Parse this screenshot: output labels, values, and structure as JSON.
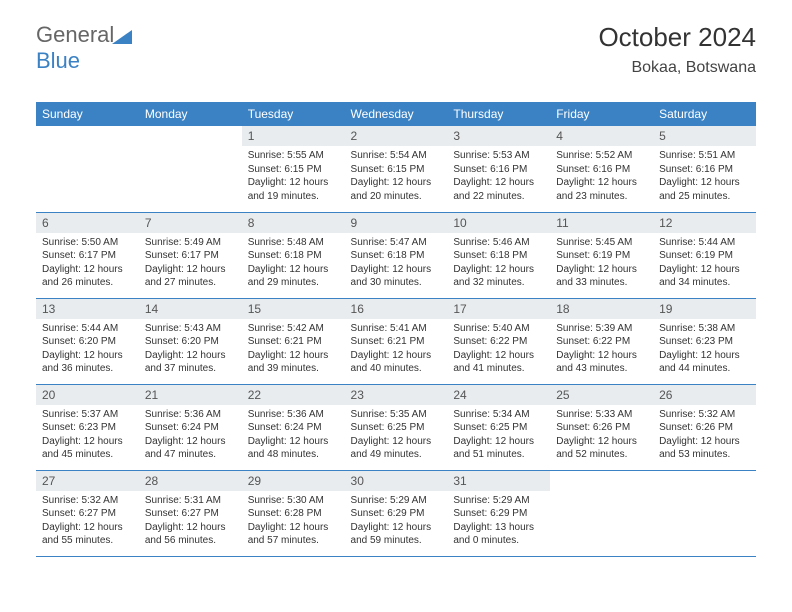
{
  "brand": {
    "text1": "General",
    "text2": "Blue",
    "color1": "#666666",
    "accent": "#3b82c4"
  },
  "header": {
    "title": "October 2024",
    "location": "Bokaa, Botswana"
  },
  "styling": {
    "header_bg": "#3b82c4",
    "header_fg": "#ffffff",
    "daynum_bg": "#e8ecef",
    "row_border": "#3b82c4",
    "body_font_size": 10,
    "th_font_size": 12,
    "title_font_size": 26,
    "location_font_size": 16
  },
  "days_of_week": [
    "Sunday",
    "Monday",
    "Tuesday",
    "Wednesday",
    "Thursday",
    "Friday",
    "Saturday"
  ],
  "cells": [
    {
      "n": "",
      "sr": "",
      "ss": "",
      "dl": ""
    },
    {
      "n": "",
      "sr": "",
      "ss": "",
      "dl": ""
    },
    {
      "n": "1",
      "sr": "5:55 AM",
      "ss": "6:15 PM",
      "dl": "12 hours and 19 minutes."
    },
    {
      "n": "2",
      "sr": "5:54 AM",
      "ss": "6:15 PM",
      "dl": "12 hours and 20 minutes."
    },
    {
      "n": "3",
      "sr": "5:53 AM",
      "ss": "6:16 PM",
      "dl": "12 hours and 22 minutes."
    },
    {
      "n": "4",
      "sr": "5:52 AM",
      "ss": "6:16 PM",
      "dl": "12 hours and 23 minutes."
    },
    {
      "n": "5",
      "sr": "5:51 AM",
      "ss": "6:16 PM",
      "dl": "12 hours and 25 minutes."
    },
    {
      "n": "6",
      "sr": "5:50 AM",
      "ss": "6:17 PM",
      "dl": "12 hours and 26 minutes."
    },
    {
      "n": "7",
      "sr": "5:49 AM",
      "ss": "6:17 PM",
      "dl": "12 hours and 27 minutes."
    },
    {
      "n": "8",
      "sr": "5:48 AM",
      "ss": "6:18 PM",
      "dl": "12 hours and 29 minutes."
    },
    {
      "n": "9",
      "sr": "5:47 AM",
      "ss": "6:18 PM",
      "dl": "12 hours and 30 minutes."
    },
    {
      "n": "10",
      "sr": "5:46 AM",
      "ss": "6:18 PM",
      "dl": "12 hours and 32 minutes."
    },
    {
      "n": "11",
      "sr": "5:45 AM",
      "ss": "6:19 PM",
      "dl": "12 hours and 33 minutes."
    },
    {
      "n": "12",
      "sr": "5:44 AM",
      "ss": "6:19 PM",
      "dl": "12 hours and 34 minutes."
    },
    {
      "n": "13",
      "sr": "5:44 AM",
      "ss": "6:20 PM",
      "dl": "12 hours and 36 minutes."
    },
    {
      "n": "14",
      "sr": "5:43 AM",
      "ss": "6:20 PM",
      "dl": "12 hours and 37 minutes."
    },
    {
      "n": "15",
      "sr": "5:42 AM",
      "ss": "6:21 PM",
      "dl": "12 hours and 39 minutes."
    },
    {
      "n": "16",
      "sr": "5:41 AM",
      "ss": "6:21 PM",
      "dl": "12 hours and 40 minutes."
    },
    {
      "n": "17",
      "sr": "5:40 AM",
      "ss": "6:22 PM",
      "dl": "12 hours and 41 minutes."
    },
    {
      "n": "18",
      "sr": "5:39 AM",
      "ss": "6:22 PM",
      "dl": "12 hours and 43 minutes."
    },
    {
      "n": "19",
      "sr": "5:38 AM",
      "ss": "6:23 PM",
      "dl": "12 hours and 44 minutes."
    },
    {
      "n": "20",
      "sr": "5:37 AM",
      "ss": "6:23 PM",
      "dl": "12 hours and 45 minutes."
    },
    {
      "n": "21",
      "sr": "5:36 AM",
      "ss": "6:24 PM",
      "dl": "12 hours and 47 minutes."
    },
    {
      "n": "22",
      "sr": "5:36 AM",
      "ss": "6:24 PM",
      "dl": "12 hours and 48 minutes."
    },
    {
      "n": "23",
      "sr": "5:35 AM",
      "ss": "6:25 PM",
      "dl": "12 hours and 49 minutes."
    },
    {
      "n": "24",
      "sr": "5:34 AM",
      "ss": "6:25 PM",
      "dl": "12 hours and 51 minutes."
    },
    {
      "n": "25",
      "sr": "5:33 AM",
      "ss": "6:26 PM",
      "dl": "12 hours and 52 minutes."
    },
    {
      "n": "26",
      "sr": "5:32 AM",
      "ss": "6:26 PM",
      "dl": "12 hours and 53 minutes."
    },
    {
      "n": "27",
      "sr": "5:32 AM",
      "ss": "6:27 PM",
      "dl": "12 hours and 55 minutes."
    },
    {
      "n": "28",
      "sr": "5:31 AM",
      "ss": "6:27 PM",
      "dl": "12 hours and 56 minutes."
    },
    {
      "n": "29",
      "sr": "5:30 AM",
      "ss": "6:28 PM",
      "dl": "12 hours and 57 minutes."
    },
    {
      "n": "30",
      "sr": "5:29 AM",
      "ss": "6:29 PM",
      "dl": "12 hours and 59 minutes."
    },
    {
      "n": "31",
      "sr": "5:29 AM",
      "ss": "6:29 PM",
      "dl": "13 hours and 0 minutes."
    },
    {
      "n": "",
      "sr": "",
      "ss": "",
      "dl": ""
    },
    {
      "n": "",
      "sr": "",
      "ss": "",
      "dl": ""
    }
  ],
  "labels": {
    "sunrise": "Sunrise:",
    "sunset": "Sunset:",
    "daylight": "Daylight:"
  }
}
